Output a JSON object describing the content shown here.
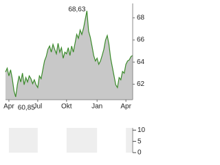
{
  "chart_data": [
    {
      "type": "area",
      "categories": [
        null,
        null,
        "Apr",
        null,
        null,
        null,
        null,
        null,
        null,
        null,
        null,
        null,
        null,
        null,
        null,
        null,
        null,
        null,
        null,
        "Jul",
        null,
        null,
        null,
        null,
        null,
        null,
        null,
        null,
        null,
        null,
        null,
        null,
        null,
        null,
        null,
        null,
        "Okt",
        null,
        null,
        null,
        null,
        null,
        null,
        null,
        null,
        null,
        null,
        null,
        null,
        null,
        null,
        null,
        null,
        null,
        "Jan",
        null,
        null,
        null,
        null,
        null,
        null,
        null,
        null,
        null,
        null,
        null,
        null,
        null,
        null,
        null,
        null,
        "Apr",
        null,
        null,
        null,
        null
      ],
      "values": [
        63.1,
        63.45,
        62.75,
        63.3,
        62.5,
        61.4,
        60.85,
        61.95,
        62.75,
        62.2,
        63.0,
        61.95,
        62.6,
        62.2,
        62.75,
        62.5,
        62.05,
        62.4,
        61.95,
        61.7,
        62.75,
        62.5,
        63.3,
        64.1,
        64.5,
        65.15,
        65.45,
        64.9,
        65.6,
        65.15,
        64.75,
        65.7,
        64.9,
        65.3,
        64.35,
        64.9,
        64.75,
        65.3,
        64.6,
        65.45,
        64.9,
        65.7,
        66.5,
        66.15,
        66.9,
        66.5,
        67.05,
        67.85,
        68.63,
        66.8,
        66.25,
        65.45,
        64.6,
        64.1,
        64.35,
        63.8,
        64.1,
        64.6,
        65.15,
        66.0,
        66.4,
        65.6,
        64.35,
        63.55,
        62.75,
        61.95,
        61.7,
        62.6,
        62.4,
        63.15,
        63.0,
        63.8,
        64.1,
        64.2,
        64.5,
        64.6
      ],
      "color": "#3a8a2a",
      "fill_color": "#c8c8c8",
      "max_label": "68,63",
      "min_label": "60,85",
      "ylim": [
        60.6,
        69.3
      ],
      "yticks": [
        62,
        64,
        66,
        68
      ]
    },
    {
      "type": "volume",
      "ylim": [
        0,
        11
      ],
      "yticks": [
        0,
        5,
        10
      ]
    }
  ]
}
